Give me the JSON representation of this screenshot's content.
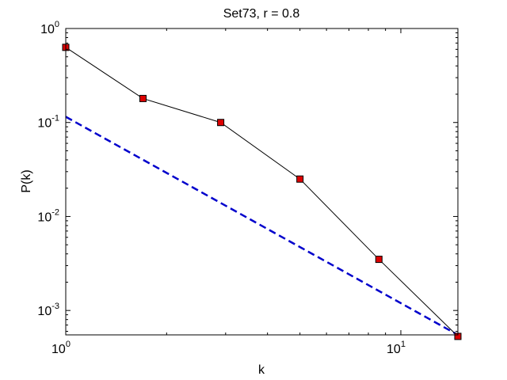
{
  "chart_data": {
    "type": "line",
    "title": "Set73, r = 0.8",
    "xlabel": "k",
    "ylabel": "P(k)",
    "xscale": "log",
    "yscale": "log",
    "xlim": [
      1,
      14.8
    ],
    "ylim": [
      0.00055,
      1
    ],
    "grid": false,
    "legend": "none",
    "x_ticks": [
      {
        "value": 1,
        "base": "10",
        "exp": "0"
      },
      {
        "value": 10,
        "base": "10",
        "exp": "1"
      }
    ],
    "y_ticks": [
      {
        "value": 1,
        "base": "10",
        "exp": "0"
      },
      {
        "value": 0.1,
        "base": "10",
        "exp": "-1"
      },
      {
        "value": 0.01,
        "base": "10",
        "exp": "-2"
      },
      {
        "value": 0.001,
        "base": "10",
        "exp": "-3"
      }
    ],
    "series": [
      {
        "style": "solid",
        "color": "#000000",
        "marker": "square",
        "marker_color": "#dd0000",
        "x": [
          1,
          1.7,
          2.9,
          5,
          8.6,
          14.8
        ],
        "y": [
          0.63,
          0.18,
          0.1,
          0.025,
          0.0035,
          0.00053
        ]
      },
      {
        "style": "dashed",
        "color": "#0000cc",
        "x": [
          1,
          14.8
        ],
        "y": [
          0.115,
          0.00055
        ]
      }
    ]
  }
}
